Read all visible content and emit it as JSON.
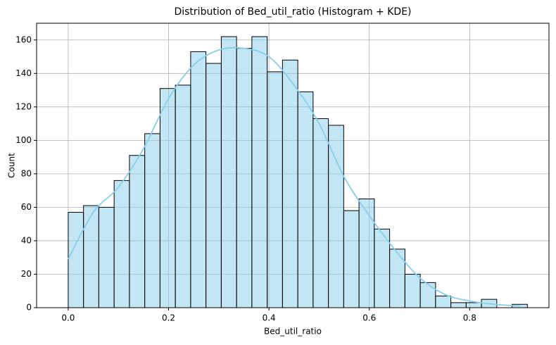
{
  "chart_data": {
    "type": "histogram",
    "title": "Distribution of Bed_util_ratio (Histogram + KDE)",
    "xlabel": "Bed_util_ratio",
    "ylabel": "Count",
    "bins": [
      0,
      0.0305,
      0.061,
      0.0915,
      0.122,
      0.1525,
      0.183,
      0.2135,
      0.244,
      0.2745,
      0.305,
      0.3355,
      0.366,
      0.3965,
      0.427,
      0.4575,
      0.488,
      0.5185,
      0.549,
      0.5795,
      0.61,
      0.6405,
      0.671,
      0.7015,
      0.732,
      0.7625,
      0.793,
      0.8235,
      0.854,
      0.8845,
      0.915
    ],
    "values": [
      57,
      61,
      60,
      76,
      91,
      104,
      131,
      133,
      153,
      146,
      162,
      155,
      162,
      141,
      148,
      129,
      113,
      109,
      58,
      65,
      47,
      35,
      20,
      15,
      7,
      3,
      3,
      5,
      0,
      2
    ],
    "color": "#87ceeb",
    "bar_alpha": 0.5,
    "edgecolor": "#000000",
    "kde": {
      "x": [
        0,
        0.05,
        0.1,
        0.15,
        0.2,
        0.25,
        0.3,
        0.35,
        0.4,
        0.45,
        0.5,
        0.55,
        0.6,
        0.65,
        0.7,
        0.75,
        0.8,
        0.85,
        0.9
      ],
      "values": [
        29,
        57,
        72,
        95,
        125,
        145,
        154,
        155,
        150,
        133,
        110,
        78,
        55,
        35,
        18,
        8,
        4,
        2,
        1
      ],
      "color": "#87ceeb"
    },
    "xlim": [
      -0.063,
      0.958
    ],
    "ylim": [
      0,
      170
    ],
    "xticks": [
      {
        "value": 0,
        "label": "0.0"
      },
      0.2,
      0.4,
      0.6,
      0.8
    ],
    "yticks": [
      0,
      20,
      40,
      60,
      80,
      100,
      120,
      140,
      160
    ],
    "grid": true
  }
}
